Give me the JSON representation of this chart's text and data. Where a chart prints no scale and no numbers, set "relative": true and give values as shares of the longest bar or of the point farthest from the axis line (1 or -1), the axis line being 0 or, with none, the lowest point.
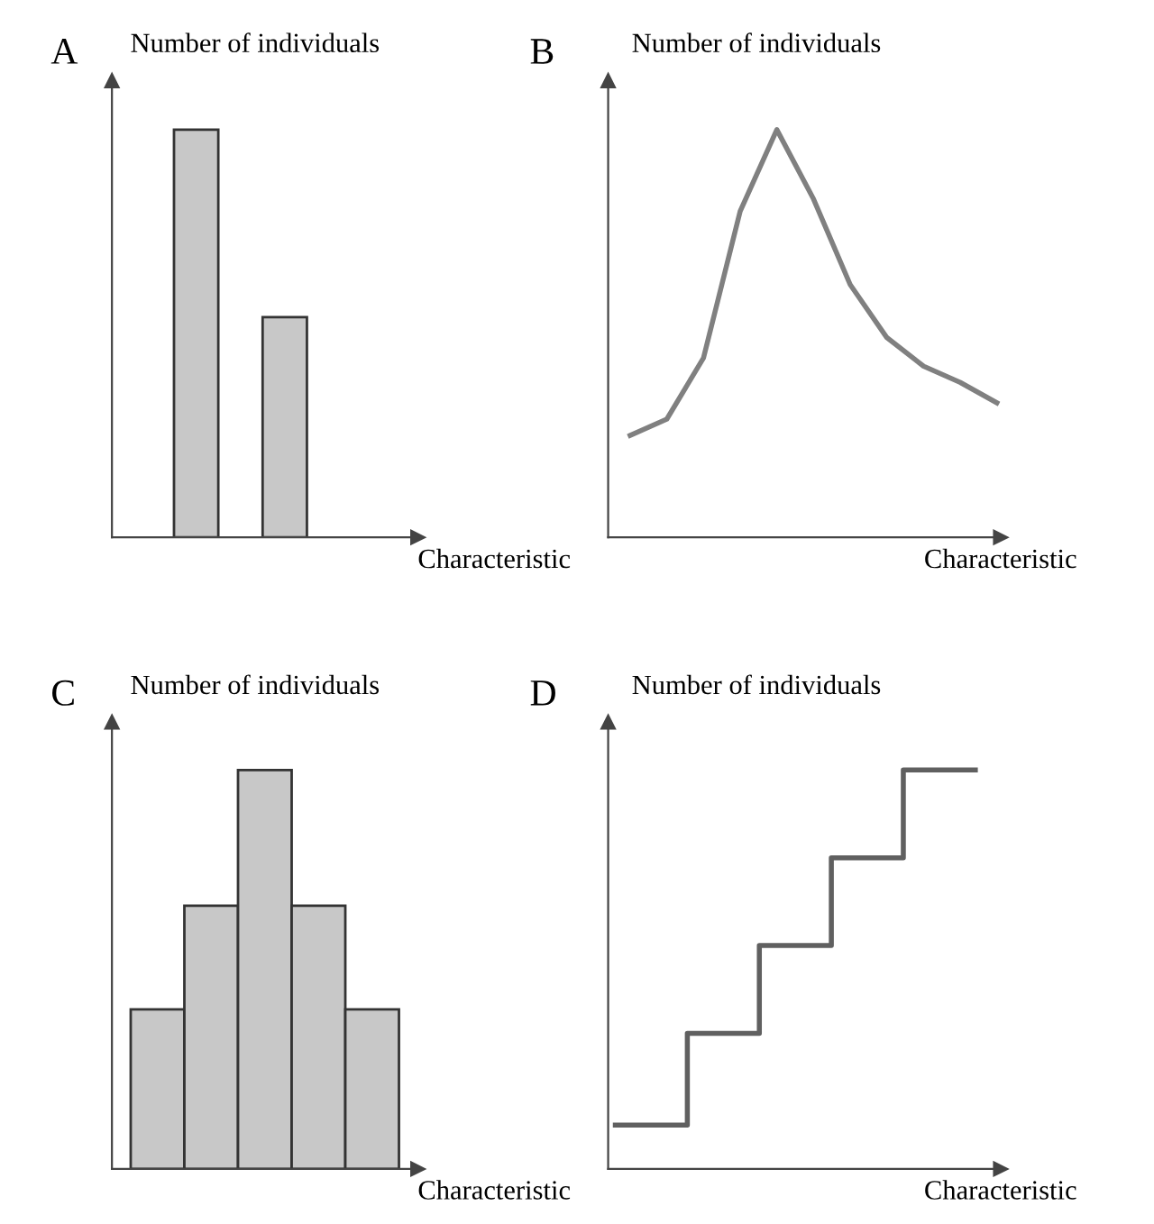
{
  "chart_data": [
    {
      "type": "bar",
      "title": "A",
      "ylabel": "Number of individuals",
      "xlabel": "Characteristic",
      "relative": true,
      "categories": [
        null,
        null
      ],
      "values": [
        1,
        0.54
      ],
      "color": "#c8c8c8"
    },
    {
      "type": "line",
      "title": "B",
      "ylabel": "Number of individuals",
      "xlabel": "Characteristic",
      "relative": true,
      "categories": [
        null,
        null,
        null,
        null,
        null,
        null,
        null,
        null,
        null,
        null,
        null
      ],
      "values": [
        0.25,
        0.29,
        0.44,
        0.8,
        1,
        0.83,
        0.62,
        0.49,
        0.42,
        0.38,
        0.33
      ],
      "color": "#808080"
    },
    {
      "type": "bar",
      "title": "C",
      "ylabel": "Number of individuals",
      "xlabel": "Characteristic",
      "relative": true,
      "categories": [
        null,
        null,
        null,
        null,
        null
      ],
      "values": [
        0.4,
        0.66,
        1,
        0.66,
        0.4
      ],
      "color": "#c8c8c8"
    },
    {
      "type": "step",
      "title": "D",
      "ylabel": "Number of individuals",
      "xlabel": "Characteristic",
      "relative": true,
      "categories": [
        null,
        null,
        null,
        null,
        null,
        null
      ],
      "values": [
        0.11,
        0.34,
        0.56,
        0.78,
        1,
        1
      ],
      "color": "#606060"
    }
  ]
}
